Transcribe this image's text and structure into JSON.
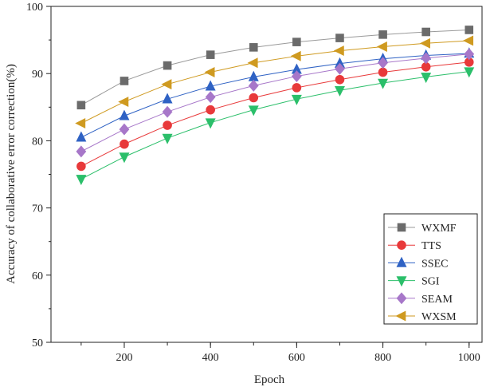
{
  "chart_data": {
    "type": "line",
    "title": "",
    "xlabel": "Epoch",
    "ylabel": "Accuracy of collaborative error correction(%)",
    "x": [
      100,
      200,
      300,
      400,
      500,
      600,
      700,
      800,
      900,
      1000
    ],
    "xlim": [
      30,
      1030
    ],
    "ylim": [
      50,
      100
    ],
    "xticks": [
      200,
      400,
      600,
      800,
      1000
    ],
    "yticks": [
      50,
      60,
      70,
      80,
      90,
      100
    ],
    "grid": false,
    "legend_position": "bottom-right",
    "series": [
      {
        "name": "WXMF",
        "color": "#6b6b6b",
        "line_color": "#9a9a9a",
        "marker": "square",
        "values": [
          85.3,
          88.9,
          91.2,
          92.8,
          93.9,
          94.7,
          95.3,
          95.8,
          96.2,
          96.5
        ]
      },
      {
        "name": "TTS",
        "color": "#e8393a",
        "line_color": "#e8393a",
        "marker": "circle",
        "values": [
          76.2,
          79.5,
          82.3,
          84.6,
          86.4,
          87.9,
          89.1,
          90.2,
          91.0,
          91.7
        ]
      },
      {
        "name": "SSEC",
        "color": "#2f62c4",
        "line_color": "#2f62c4",
        "marker": "triangle-up",
        "values": [
          80.5,
          83.7,
          86.2,
          88.1,
          89.5,
          90.6,
          91.5,
          92.2,
          92.7,
          93.0
        ]
      },
      {
        "name": "SGI",
        "color": "#2bbf6a",
        "line_color": "#2bbf6a",
        "marker": "triangle-down",
        "values": [
          74.3,
          77.6,
          80.4,
          82.7,
          84.6,
          86.2,
          87.5,
          88.6,
          89.5,
          90.3
        ]
      },
      {
        "name": "SEAM",
        "color": "#a777c9",
        "line_color": "#a777c9",
        "marker": "diamond",
        "values": [
          78.4,
          81.7,
          84.3,
          86.5,
          88.2,
          89.6,
          90.7,
          91.6,
          92.3,
          92.9
        ]
      },
      {
        "name": "WXSM",
        "color": "#cf9a20",
        "line_color": "#cf9a20",
        "marker": "triangle-left",
        "values": [
          82.6,
          85.8,
          88.4,
          90.2,
          91.6,
          92.6,
          93.4,
          94.0,
          94.5,
          94.9
        ]
      }
    ]
  }
}
